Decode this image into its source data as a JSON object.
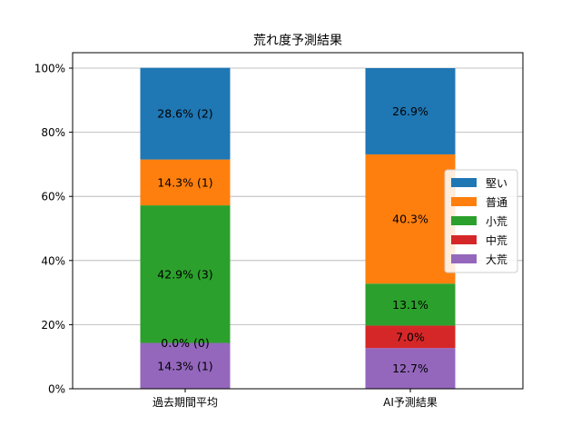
{
  "chart_data": {
    "type": "bar",
    "stacked": true,
    "title": "荒れ度予測結果",
    "xlabel": "",
    "ylabel": "",
    "ylim": [
      0,
      100
    ],
    "y_ticks": [
      "0%",
      "20%",
      "40%",
      "60%",
      "80%",
      "100%"
    ],
    "grid": "horizontal",
    "legend_position": "right",
    "categories": [
      "過去期間平均",
      "AI予測結果"
    ],
    "series": [
      {
        "name": "大荒",
        "color": "#9467bd",
        "values": [
          14.3,
          12.7
        ],
        "labels": [
          "14.3% (1)",
          "12.7%"
        ]
      },
      {
        "name": "中荒",
        "color": "#d62728",
        "values": [
          0.0,
          7.0
        ],
        "labels": [
          "0.0% (0)",
          "7.0%"
        ]
      },
      {
        "name": "小荒",
        "color": "#2ca02c",
        "values": [
          42.9,
          13.1
        ],
        "labels": [
          "42.9% (3)",
          "13.1%"
        ]
      },
      {
        "name": "普通",
        "color": "#ff7f0e",
        "values": [
          14.3,
          40.3
        ],
        "labels": [
          "14.3% (1)",
          "40.3%"
        ]
      },
      {
        "name": "堅い",
        "color": "#1f77b4",
        "values": [
          28.6,
          26.9
        ],
        "labels": [
          "28.6% (2)",
          "26.9%"
        ]
      }
    ],
    "legend_order": [
      "堅い",
      "普通",
      "小荒",
      "中荒",
      "大荒"
    ]
  }
}
